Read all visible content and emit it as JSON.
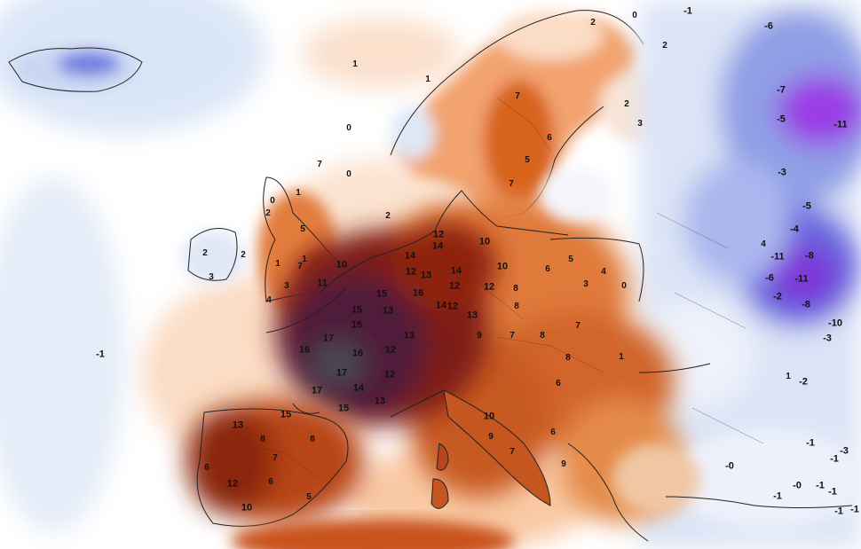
{
  "map": {
    "type": "temperature-anomaly-map",
    "region": "Europe",
    "palette": {
      "ocean_light": "#eef3fb",
      "ocean_white": "#ffffff",
      "cold_light": "#c9d6f2",
      "cold_mid": "#8f9fe6",
      "cold_strong": "#5b5fdc",
      "cold_extreme": "#9a3ee6",
      "warm_light": "#fbdcc4",
      "warm_mid": "#f4a774",
      "warm": "#e07a3a",
      "warm_strong": "#c2501a",
      "hot": "#8e2410",
      "very_hot": "#5c1330",
      "extreme_hot": "#4a2f4a",
      "border": "#222222"
    },
    "labels": [
      {
        "text": "1"
      },
      {
        "text": "1"
      },
      {
        "text": "0"
      },
      {
        "text": "0"
      },
      {
        "text": "2"
      },
      {
        "text": "-1"
      },
      {
        "text": "-1"
      },
      {
        "text": "7"
      },
      {
        "text": "0"
      },
      {
        "text": "2"
      },
      {
        "text": "2"
      },
      {
        "text": "3"
      },
      {
        "text": "2"
      },
      {
        "text": "-6"
      },
      {
        "text": "-7"
      },
      {
        "text": "-11"
      },
      {
        "text": "-5"
      },
      {
        "text": "7"
      },
      {
        "text": "5"
      },
      {
        "text": "6"
      },
      {
        "text": "7"
      },
      {
        "text": "2"
      },
      {
        "text": "2"
      },
      {
        "text": "0"
      },
      {
        "text": "1"
      },
      {
        "text": "3"
      },
      {
        "text": "1"
      },
      {
        "text": "1"
      },
      {
        "text": "3"
      },
      {
        "text": "5"
      },
      {
        "text": "7"
      },
      {
        "text": "10"
      },
      {
        "text": "11"
      },
      {
        "text": "4"
      },
      {
        "text": "2"
      },
      {
        "text": "10"
      },
      {
        "text": "14"
      },
      {
        "text": "12"
      },
      {
        "text": "15"
      },
      {
        "text": "13"
      },
      {
        "text": "16"
      },
      {
        "text": "14"
      },
      {
        "text": "12"
      },
      {
        "text": "12"
      },
      {
        "text": "14"
      },
      {
        "text": "12"
      },
      {
        "text": "15"
      },
      {
        "text": "13"
      },
      {
        "text": "13"
      },
      {
        "text": "17"
      },
      {
        "text": "15"
      },
      {
        "text": "16"
      },
      {
        "text": "16"
      },
      {
        "text": "12"
      },
      {
        "text": "17"
      },
      {
        "text": "14"
      },
      {
        "text": "12"
      },
      {
        "text": "17"
      },
      {
        "text": "15"
      },
      {
        "text": "13"
      },
      {
        "text": "14"
      },
      {
        "text": "12"
      },
      {
        "text": "10"
      },
      {
        "text": "8"
      },
      {
        "text": "8"
      },
      {
        "text": "6"
      },
      {
        "text": "5"
      },
      {
        "text": "4"
      },
      {
        "text": "0"
      },
      {
        "text": "3"
      },
      {
        "text": "13"
      },
      {
        "text": "9"
      },
      {
        "text": "7"
      },
      {
        "text": "8"
      },
      {
        "text": "7"
      },
      {
        "text": "8"
      },
      {
        "text": "6"
      },
      {
        "text": "1"
      },
      {
        "text": "13"
      },
      {
        "text": "8"
      },
      {
        "text": "8"
      },
      {
        "text": "7"
      },
      {
        "text": "6"
      },
      {
        "text": "12"
      },
      {
        "text": "10"
      },
      {
        "text": "6"
      },
      {
        "text": "5"
      },
      {
        "text": "15"
      },
      {
        "text": "10"
      },
      {
        "text": "9"
      },
      {
        "text": "6"
      },
      {
        "text": "9"
      },
      {
        "text": "7"
      },
      {
        "text": "4"
      },
      {
        "text": "-2"
      },
      {
        "text": "-3"
      },
      {
        "text": "-4"
      },
      {
        "text": "-5"
      },
      {
        "text": "-11"
      },
      {
        "text": "-8"
      },
      {
        "text": "-6"
      },
      {
        "text": "-11"
      },
      {
        "text": "-8"
      },
      {
        "text": "-10"
      },
      {
        "text": "-3"
      },
      {
        "text": "-2"
      },
      {
        "text": "1"
      },
      {
        "text": "-1"
      },
      {
        "text": "-0"
      },
      {
        "text": "-1"
      },
      {
        "text": "-1"
      },
      {
        "text": "-0"
      },
      {
        "text": "-1"
      },
      {
        "text": "-3"
      },
      {
        "text": "-1"
      },
      {
        "text": "-1"
      },
      {
        "text": "-1"
      }
    ]
  }
}
